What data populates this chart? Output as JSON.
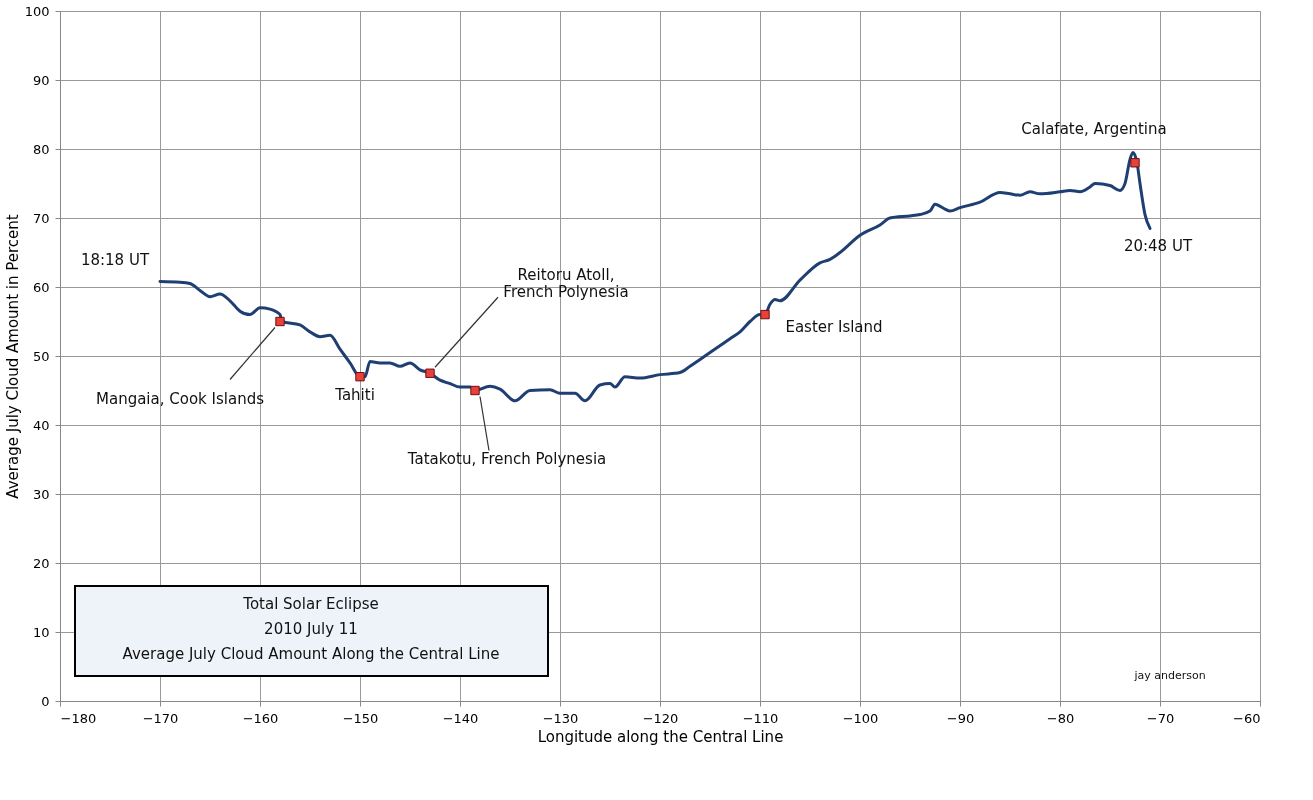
{
  "chart_data": {
    "type": "line",
    "title": "Total Solar Eclipse",
    "subtitle": "2010 July 11",
    "xlabel": "Longitude along the Central Line",
    "ylabel": "Average July Cloud Amount in Percent",
    "xlim": [
      -180,
      -60
    ],
    "xticks": [
      -180,
      -170,
      -160,
      -150,
      -140,
      -130,
      -120,
      -110,
      -100,
      -90,
      -80,
      -70,
      -60
    ],
    "ylim": [
      0,
      100
    ],
    "yticks": [
      0,
      10,
      20,
      30,
      40,
      50,
      60,
      70,
      80,
      90,
      100
    ],
    "grid": true,
    "series": [
      {
        "color": "#1f3f73",
        "line_style": "solid",
        "x": [
          -170,
          -168,
          -167,
          -166,
          -165,
          -164,
          -163,
          -162,
          -161,
          -160,
          -159,
          -158,
          -157.8,
          -156,
          -155,
          -154,
          -153,
          -152,
          -151,
          -150,
          -149.5,
          -149,
          -148,
          -147,
          -146,
          -145,
          -144,
          -143,
          -142,
          -141,
          -140,
          -139,
          -138.5,
          -137,
          -136,
          -134.5,
          -133,
          -131,
          -130,
          -128.5,
          -127.5,
          -126,
          -125,
          -124.5,
          -123.5,
          -122,
          -120,
          -118,
          -117,
          -116,
          -115,
          -113,
          -112,
          -111,
          -110,
          -109.5,
          -109,
          -108.5,
          -108,
          -106,
          -104,
          -103,
          -102,
          -100,
          -98,
          -97,
          -95,
          -94,
          -93,
          -92.5,
          -91.5,
          -91,
          -90,
          -88,
          -86,
          -85,
          -84,
          -83,
          -82,
          -80,
          -79,
          -78,
          -77,
          -76.5,
          -75,
          -74,
          -73.5,
          -73,
          -72.7,
          -72.3,
          -72,
          -71.5,
          -71
        ],
        "values": [
          60.8,
          60.7,
          60.5,
          59.5,
          58.6,
          59,
          58,
          56.5,
          56,
          57,
          56.8,
          56,
          55,
          54.5,
          53.5,
          52.8,
          53,
          51,
          49,
          47,
          47,
          49.2,
          49,
          49,
          48.5,
          49,
          48,
          47.5,
          46.5,
          46,
          45.5,
          45.5,
          45,
          45.6,
          45.2,
          43.5,
          45,
          45.1,
          44.6,
          44.6,
          43.5,
          45.8,
          46,
          45.5,
          47,
          46.8,
          47.3,
          47.6,
          48.5,
          49.5,
          50.5,
          52.5,
          53.5,
          55,
          56,
          56,
          57.5,
          58.2,
          58,
          61,
          63.5,
          64,
          65,
          67.5,
          69,
          70,
          70.3,
          70.5,
          71,
          72,
          71.3,
          71,
          71.5,
          72.3,
          73.7,
          73.5,
          73.3,
          73.8,
          73.5,
          73.8,
          74,
          73.8,
          74.5,
          75,
          74.7,
          74,
          75,
          78.5,
          79.5,
          78,
          75,
          70.5,
          68.5
        ]
      },
      {
        "type": "scatter",
        "color": "#e8403a",
        "marker": "square",
        "x": [
          -158,
          -150,
          -143,
          -138.5,
          -109.5,
          -72.5
        ],
        "values": [
          55,
          47,
          47.5,
          45,
          56,
          78
        ]
      }
    ],
    "annotations": [
      {
        "text": "18:18 UT",
        "x": -170,
        "y": 60.8
      },
      {
        "text": "Mangaia, Cook Islands",
        "x": -158,
        "y": 55
      },
      {
        "text": "Tahiti",
        "x": -150,
        "y": 47
      },
      {
        "text": "Reitoru Atoll,\nFrench Polynesia",
        "x": -143,
        "y": 47.5
      },
      {
        "text": "Tatakotu, French Polynesia",
        "x": -138.5,
        "y": 45
      },
      {
        "text": "Easter Island",
        "x": -109.5,
        "y": 56
      },
      {
        "text": "Calafate, Argentina",
        "x": -72.5,
        "y": 78
      },
      {
        "text": "20:48 UT",
        "x": -71,
        "y": 68.5
      },
      "Average July Cloud Amount Along the Central Line",
      "jay anderson"
    ]
  }
}
